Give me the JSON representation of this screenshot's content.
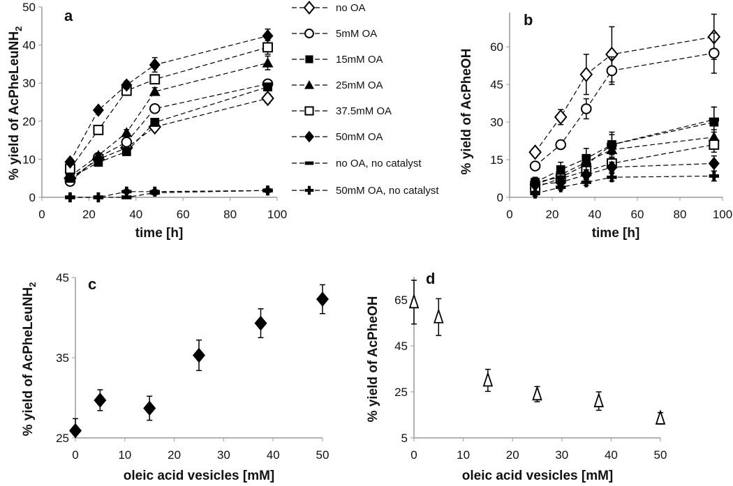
{
  "chart_data": [
    {
      "panel": "a",
      "type": "line",
      "xlabel": "time [h]",
      "ylabel": "% yield of AcPheLeuNH",
      "ylabel_sub": "2",
      "xlim": [
        0,
        100
      ],
      "ylim": [
        0,
        50
      ],
      "xticks": [
        0,
        20,
        40,
        60,
        80,
        100
      ],
      "yticks": [
        0,
        10,
        20,
        30,
        40,
        50
      ],
      "x": [
        12,
        24,
        36,
        48,
        96
      ],
      "series": [
        {
          "name": "no OA",
          "marker": "diamond-open",
          "values": [
            5,
            10,
            13,
            18.5,
            26
          ],
          "err": [
            0.5,
            0.5,
            0.8,
            1,
            1.2
          ]
        },
        {
          "name": "5mM OA",
          "marker": "circle-open",
          "values": [
            4.2,
            10.5,
            14.5,
            23.3,
            29.8
          ],
          "err": [
            0.5,
            0.6,
            0.8,
            1,
            1
          ]
        },
        {
          "name": "15mM OA",
          "marker": "square-filled",
          "values": [
            5,
            9.2,
            12,
            19.7,
            29
          ],
          "err": [
            0.5,
            0.5,
            0.7,
            1,
            1
          ]
        },
        {
          "name": "25mM OA",
          "marker": "triangle-filled",
          "values": [
            5.5,
            11,
            17,
            27.8,
            35.3
          ],
          "err": [
            0.5,
            0.6,
            0.8,
            1,
            1.8
          ]
        },
        {
          "name": "37.5mM OA",
          "marker": "square-open",
          "values": [
            7.5,
            17.7,
            28,
            31,
            39.4
          ],
          "err": [
            0.5,
            0.6,
            0.8,
            1,
            1.8
          ]
        },
        {
          "name": "50mM OA",
          "marker": "diamond-filled",
          "values": [
            9.3,
            22.9,
            29.5,
            34.8,
            42.4
          ],
          "err": [
            0.5,
            0.5,
            1,
            1.9,
            1.8
          ]
        },
        {
          "name": "no OA, no catalyst",
          "marker": "dash",
          "values": [
            0,
            0,
            0,
            1.2,
            1.8
          ],
          "err": [
            0.2,
            0.2,
            0.2,
            0.5,
            0.5
          ]
        },
        {
          "name": "50mM OA, no catalyst",
          "marker": "plus",
          "values": [
            0,
            0,
            1.5,
            1.5,
            1.8
          ],
          "err": [
            0.2,
            0.2,
            0.5,
            0.5,
            0.5
          ]
        }
      ]
    },
    {
      "panel": "b",
      "type": "line",
      "xlabel": "time [h]",
      "ylabel": "% yield of AcPheOH",
      "xlim": [
        0,
        100
      ],
      "ylim": [
        0,
        72
      ],
      "xticks": [
        0,
        20,
        40,
        60,
        80,
        100
      ],
      "yticks": [
        0,
        15,
        30,
        45,
        60
      ],
      "x": [
        12,
        24,
        36,
        48,
        96
      ],
      "series": [
        {
          "name": "no OA",
          "marker": "diamond-open",
          "values": [
            18,
            32,
            49,
            57,
            64
          ],
          "err": [
            1,
            3,
            8,
            11,
            9
          ]
        },
        {
          "name": "5mM OA",
          "marker": "circle-open",
          "values": [
            12.5,
            21,
            35.3,
            50.5,
            57.5
          ],
          "err": [
            1,
            1.5,
            4,
            5.5,
            8
          ]
        },
        {
          "name": "15mM OA",
          "marker": "square-filled",
          "values": [
            6,
            11,
            15.5,
            21,
            30
          ],
          "err": [
            2,
            3,
            4,
            5,
            6
          ]
        },
        {
          "name": "25mM OA",
          "marker": "triangle-filled",
          "values": [
            5,
            9,
            14,
            19,
            24
          ],
          "err": [
            1.5,
            2,
            3,
            3,
            3
          ]
        },
        {
          "name": "37.5mM OA",
          "marker": "square-open",
          "values": [
            4,
            7.5,
            10.5,
            13.5,
            21
          ],
          "err": [
            1,
            1.5,
            2,
            2,
            3
          ]
        },
        {
          "name": "50mM OA",
          "marker": "diamond-filled",
          "values": [
            5,
            6,
            9,
            12,
            13.5
          ],
          "err": [
            1,
            1.5,
            2,
            2,
            3
          ]
        },
        {
          "name": "no OA, no catalyst",
          "marker": "dash",
          "values": [
            6,
            8,
            13,
            21,
            31
          ],
          "err": [
            1,
            2,
            3,
            4,
            5
          ]
        },
        {
          "name": "50mM OA, no catalyst",
          "marker": "plus",
          "values": [
            1.5,
            4,
            6,
            8,
            8.5
          ],
          "err": [
            1,
            1,
            1.2,
            1.5,
            2
          ]
        }
      ]
    },
    {
      "panel": "c",
      "type": "scatter",
      "xlabel": "oleic acid vesicles [mM]",
      "ylabel": "% yield of AcPheLeuNH",
      "ylabel_sub": "2",
      "xlim": [
        0,
        50
      ],
      "ylim": [
        25,
        45
      ],
      "xticks": [
        0,
        10,
        20,
        30,
        40,
        50
      ],
      "yticks": [
        25,
        35,
        45
      ],
      "x": [
        0,
        5,
        15,
        25,
        37.5,
        50
      ],
      "values": [
        25.9,
        29.7,
        28.7,
        35.3,
        39.3,
        42.3
      ],
      "err": [
        1.5,
        1.3,
        1.5,
        1.9,
        1.8,
        1.8
      ],
      "marker": "diamond-filled"
    },
    {
      "panel": "d",
      "type": "scatter",
      "xlabel": "oleic acid vesicles [mM]",
      "ylabel": "% yield of AcPheOH",
      "xlim": [
        0,
        50
      ],
      "ylim": [
        5,
        75
      ],
      "xticks": [
        0,
        10,
        20,
        30,
        40,
        50
      ],
      "yticks": [
        5,
        25,
        45,
        65
      ],
      "x": [
        0,
        5,
        15,
        25,
        37.5,
        50
      ],
      "values": [
        64,
        57.5,
        30,
        24,
        21,
        13.5
      ],
      "err": [
        9.5,
        8,
        4.8,
        3.3,
        4,
        2.5
      ],
      "marker": "triangle-open"
    }
  ],
  "legend": {
    "placement": "between panels a and b"
  }
}
